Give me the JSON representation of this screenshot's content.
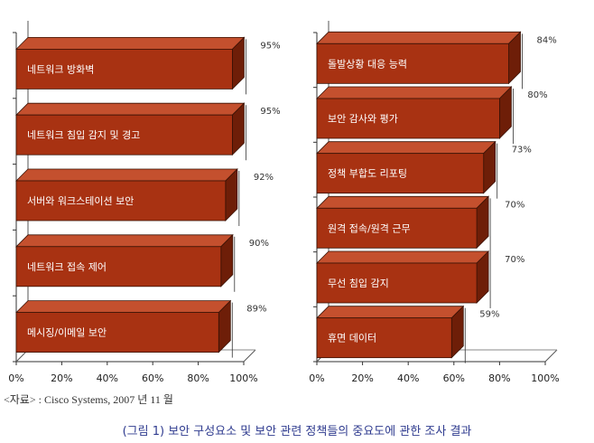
{
  "chart_data": [
    {
      "type": "bar",
      "orientation": "horizontal",
      "style": "3d",
      "categories": [
        "네트워크 방화벽",
        "네트워크 침입 감지 및 경고",
        "서버와 워크스테이션 보안",
        "네트워크 접속 제어",
        "메시징/이메일 보안"
      ],
      "values": [
        95,
        95,
        92,
        90,
        89
      ],
      "value_labels": [
        "95%",
        "95%",
        "92%",
        "90%",
        "89%"
      ],
      "xlim": [
        0,
        100
      ],
      "xticks": [
        "0%",
        "20%",
        "40%",
        "60%",
        "80%",
        "100%"
      ],
      "grid": false,
      "bar_color": "#a83212"
    },
    {
      "type": "bar",
      "orientation": "horizontal",
      "style": "3d",
      "categories": [
        "돌발상황 대응 능력",
        "보안 감사와 평가",
        "정책 부합도 리포팅",
        "원격 접속/원격 근무",
        "무선 침입 감지",
        "휴면 데이터"
      ],
      "values": [
        84,
        80,
        73,
        70,
        70,
        59
      ],
      "value_labels": [
        "84%",
        "80%",
        "73%",
        "70%",
        "70%",
        "59%"
      ],
      "xlim": [
        0,
        100
      ],
      "xticks": [
        "0%",
        "20%",
        "40%",
        "60%",
        "80%",
        "100%"
      ],
      "grid": false,
      "bar_color": "#a83212"
    }
  ],
  "source": "<자료> : Cisco Systems, 2007 년 11 월",
  "caption": "(그림 1) 보안 구성요소 및 보안 관련 정책들의 중요도에 관한 조사 결과"
}
